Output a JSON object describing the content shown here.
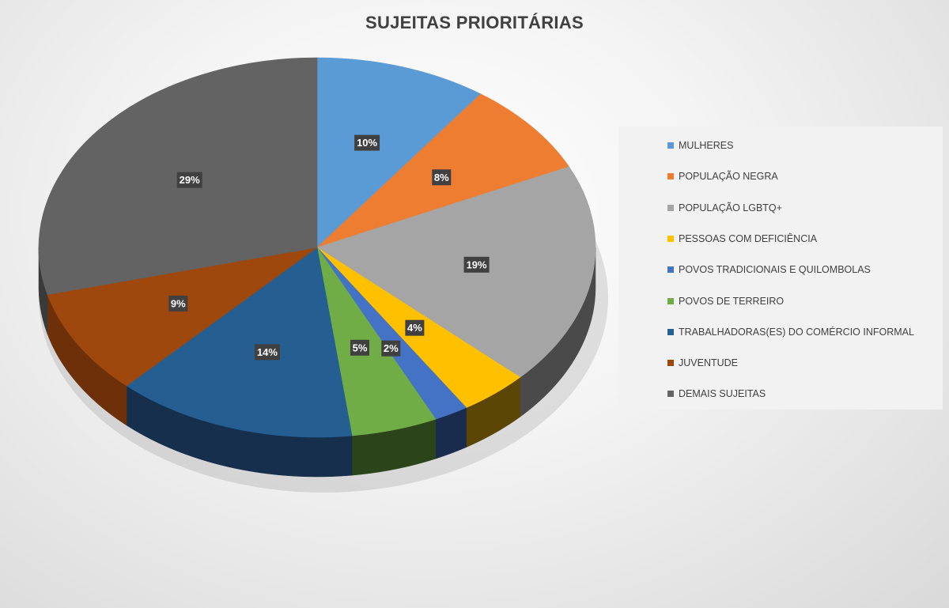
{
  "chart_data": {
    "type": "pie",
    "title": "SUJEITAS PRIORITÁRIAS",
    "legend_position": "right",
    "slices": [
      {
        "name": "MULHERES",
        "value": 10,
        "label": "10%",
        "color": "#5b9bd5",
        "side": "#3b6f9f"
      },
      {
        "name": "POPULAÇÃO NEGRA",
        "value": 8,
        "label": "8%",
        "color": "#ed7d31",
        "side": "#a9551e"
      },
      {
        "name": "POPULAÇÃO LGBTQ+",
        "value": 19,
        "label": "19%",
        "color": "#a5a5a5",
        "side": "#4a4a4a"
      },
      {
        "name": "PESSOAS COM DEFICIÊNCIA",
        "value": 4,
        "label": "4%",
        "color": "#ffc000",
        "side": "#5c4606"
      },
      {
        "name": "POVOS TRADICIONAIS E QUILOMBOLAS",
        "value": 2,
        "label": "2%",
        "color": "#4472c4",
        "side": "#1a2c4e"
      },
      {
        "name": "POVOS DE TERREIRO",
        "value": 5,
        "label": "5%",
        "color": "#70ad47",
        "side": "#2b4419"
      },
      {
        "name": "TRABALHADORAS(ES) DO COMÉRCIO INFORMAL",
        "value": 14,
        "label": "14%",
        "color": "#255e91",
        "side": "#152f4c"
      },
      {
        "name": "JUVENTUDE",
        "value": 9,
        "label": "9%",
        "color": "#9e480e",
        "side": "#6e3008"
      },
      {
        "name": "DEMAIS SUJEITAS",
        "value": 29,
        "label": "29%",
        "color": "#636363",
        "side": "#3a3a3a"
      }
    ]
  }
}
